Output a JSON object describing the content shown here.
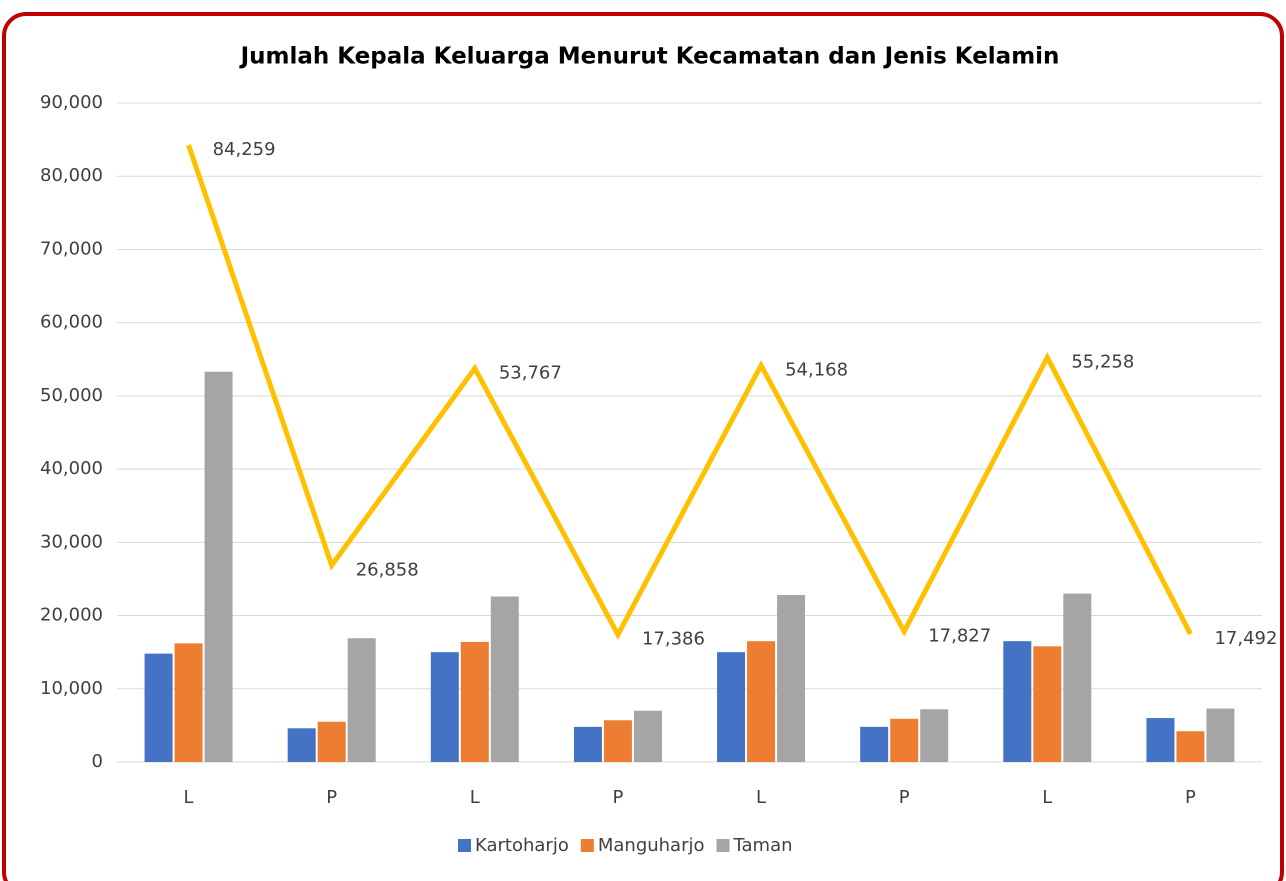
{
  "chart_data": {
    "type": "bar_line",
    "title": "Jumlah Kepala Keluarga Menurut Kecamatan dan Jenis Kelamin",
    "categories": [
      "L",
      "P",
      "L",
      "P",
      "L",
      "P",
      "L",
      "P"
    ],
    "series": [
      {
        "name": "Kartoharjo",
        "color": "#4472c4",
        "values": [
          14800,
          4600,
          15000,
          4800,
          15000,
          4800,
          16500,
          6000
        ]
      },
      {
        "name": "Manguharjo",
        "color": "#ed7d31",
        "values": [
          16200,
          5500,
          16400,
          5700,
          16500,
          5900,
          15800,
          4200
        ]
      },
      {
        "name": "Taman",
        "color": "#a5a5a5",
        "values": [
          53300,
          16900,
          22600,
          7000,
          22800,
          7200,
          23000,
          7300
        ]
      }
    ],
    "line": {
      "color": "#ffc000",
      "values": [
        84259,
        26858,
        53767,
        17386,
        54168,
        17827,
        55258,
        17492
      ],
      "value_labels": [
        "84,259",
        "26,858",
        "53,767",
        "17,386",
        "54,168",
        "17,827",
        "55,258",
        "17,492"
      ]
    },
    "ylim": [
      0,
      90000
    ],
    "yticks": [
      0,
      {
        "value": 10000,
        "label": "10,000"
      },
      {
        "value": 20000,
        "label": "20,000"
      },
      {
        "value": 30000,
        "label": "30,000"
      },
      {
        "value": 40000,
        "label": "40,000"
      },
      {
        "value": 50000,
        "label": "50,000"
      },
      {
        "value": 60000,
        "label": "60,000"
      },
      {
        "value": 70000,
        "label": "70,000"
      },
      {
        "value": 80000,
        "label": "80,000"
      },
      {
        "value": 90000,
        "label": "90,000"
      }
    ],
    "grid": true,
    "legend": "bottom"
  }
}
